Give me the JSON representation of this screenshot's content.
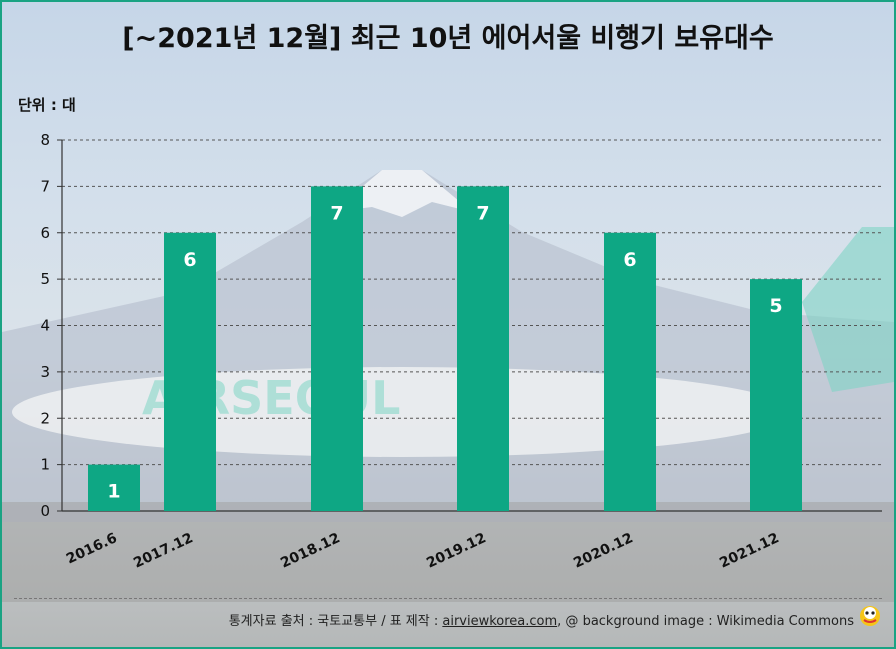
{
  "title": "[~2021년 12월] 최근 10년 에어서울 비행기 보유대수",
  "unit_label": "단위 : 대",
  "footer": {
    "prefix": "통계자료 출처 : 국토교통부 / 표 제작 : ",
    "link": "airviewkorea.com",
    "suffix": ", @ background image : Wikimedia Commons"
  },
  "colors": {
    "bar": "#0ea784",
    "border": "#1aa383",
    "label_text": "#ffffff"
  },
  "chart_data": {
    "type": "bar",
    "title": "[~2021년 12월] 최근 10년 에어서울 비행기 보유대수",
    "ylabel": "단위 : 대",
    "xlabel": "",
    "categories": [
      "2016.6",
      "2017.12",
      "2018.12",
      "2019.12",
      "2020.12",
      "2021.12"
    ],
    "values": [
      1,
      6,
      7,
      7,
      6,
      5
    ],
    "ylim": [
      0,
      8
    ],
    "yticks": [
      0,
      1,
      2,
      3,
      4,
      5,
      6,
      7,
      8
    ],
    "grid": true
  }
}
